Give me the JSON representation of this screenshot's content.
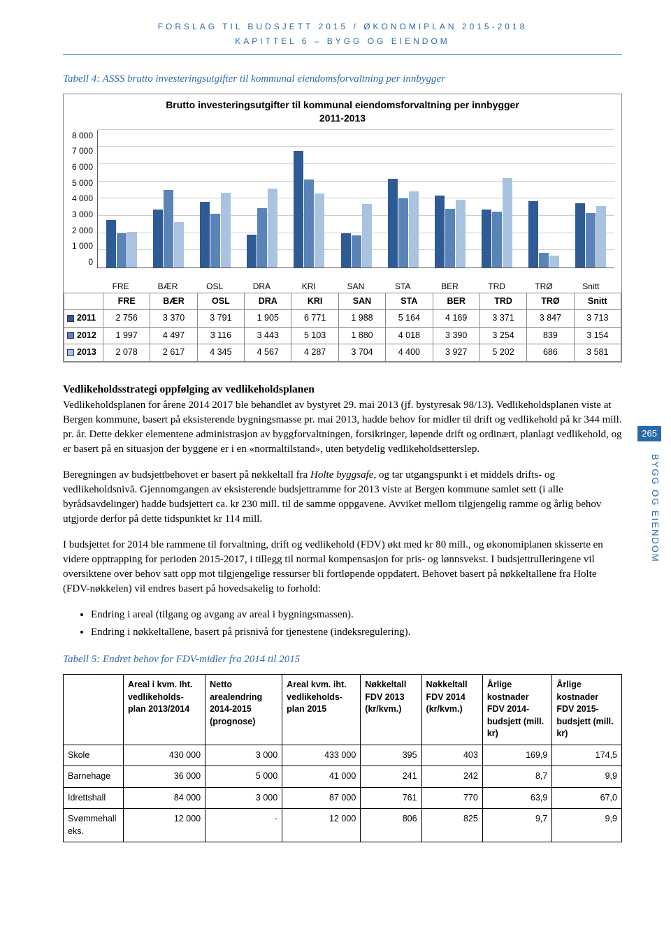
{
  "header": {
    "line1": "FORSLAG TIL BUDSJETT 2015 / ØKONOMIPLAN 2015-2018",
    "line2": "KAPITTEL 6 – BYGG OG EIENDOM"
  },
  "chart": {
    "caption": "Tabell 4: ASSS brutto investeringsutgifter til kommunal eiendomsforvaltning per innbygger",
    "title_l1": "Brutto investeringsutgifter til kommunal eiendomsforvaltning per innbygger",
    "title_l2": "2011-2013",
    "ymax": 8000,
    "ystep": 1000,
    "yticks": [
      "0",
      "1 000",
      "2 000",
      "3 000",
      "4 000",
      "5 000",
      "6 000",
      "7 000",
      "8 000"
    ],
    "categories": [
      "FRE",
      "BÆR",
      "OSL",
      "DRA",
      "KRI",
      "SAN",
      "STA",
      "BER",
      "TRD",
      "TRØ",
      "Snitt"
    ],
    "series": [
      {
        "name": "2011",
        "color": "#2e5b95",
        "values": [
          2756,
          3370,
          3791,
          1905,
          6771,
          1988,
          5164,
          4169,
          3371,
          3847,
          3713
        ]
      },
      {
        "name": "2012",
        "color": "#5a83b8",
        "values": [
          1997,
          4497,
          3116,
          3443,
          5103,
          1880,
          4018,
          3390,
          3254,
          839,
          3154
        ]
      },
      {
        "name": "2013",
        "color": "#a9c3e0",
        "values": [
          2078,
          2617,
          4345,
          4567,
          4287,
          3704,
          4400,
          3927,
          5202,
          686,
          3581
        ]
      }
    ]
  },
  "section_head": "Vedlikeholdsstrategi oppfølging av vedlikeholdsplanen",
  "para1": "Vedlikeholdsplanen for årene 2014 2017 ble behandlet av bystyret 29. mai 2013 (jf. bystyresak 98/13). Vedlikeholdsplanen viste at Bergen kommune, basert på eksisterende bygningsmasse pr. mai 2013, hadde behov for midler til drift og vedlikehold på kr 344 mill. pr. år. Dette dekker elementene administrasjon av byggforvaltningen, forsikringer, løpende drift og ordinært, planlagt vedlikehold, og er basert på en situasjon der byggene er i en «normaltilstand», uten betydelig vedlikeholdsetterslep.",
  "para2_a": "Beregningen av budsjettbehovet er basert på nøkkeltall fra ",
  "para2_it": "Holte byggsafe",
  "para2_b": ", og tar utgangspunkt i et middels drifts- og vedlikeholdsnivå. Gjennomgangen av eksisterende budsjettramme for 2013 viste at Bergen kommune samlet sett (i alle byrådsavdelinger) hadde budsjettert ca. kr 230 mill. til de samme oppgavene. Avviket mellom tilgjengelig ramme og årlig behov utgjorde derfor på dette tidspunktet kr 114 mill.",
  "para3": "I budsjettet for 2014 ble rammene til forvaltning, drift og vedlikehold (FDV) økt med kr 80 mill., og økonomiplanen skisserte en videre opptrapping for perioden 2015-2017, i tillegg til normal kompensasjon for pris- og lønnsvekst. I budsjettrulleringene vil oversiktene over behov satt opp mot tilgjengelige ressurser bli fortløpende oppdatert. Behovet basert på nøkkeltallene fra Holte (FDV-nøkkelen) vil endres basert på hovedsakelig to forhold:",
  "bullets": [
    "Endring i areal (tilgang og avgang av areal i bygningsmassen).",
    "Endring i nøkkeltallene, basert på prisnivå for tjenestene (indeksregulering)."
  ],
  "table5_caption": "Tabell 5: Endret behov for FDV-midler fra 2014 til 2015",
  "fdv": {
    "headers": [
      "",
      "Areal i kvm. Iht. vedlikeholds-plan 2013/2014",
      "Netto arealendring 2014-2015 (prognose)",
      "Areal kvm. iht. vedlikeholds-plan 2015",
      "Nøkkeltall FDV 2013 (kr/kvm.)",
      "Nøkkeltall FDV 2014 (kr/kvm.)",
      "Årlige kostnader FDV 2014-budsjett (mill. kr)",
      "Årlige kostnader FDV 2015-budsjett (mill. kr)"
    ],
    "rows": [
      {
        "label": "Skole",
        "c": [
          "430 000",
          "3 000",
          "433 000",
          "395",
          "403",
          "169,9",
          "174,5"
        ]
      },
      {
        "label": "Barnehage",
        "c": [
          "36 000",
          "5 000",
          "41 000",
          "241",
          "242",
          "8,7",
          "9,9"
        ]
      },
      {
        "label": "Idrettshall",
        "c": [
          "84 000",
          "3 000",
          "87 000",
          "761",
          "770",
          "63,9",
          "67,0"
        ]
      },
      {
        "label": "Svømmehall eks.",
        "c": [
          "12 000",
          "-",
          "12 000",
          "806",
          "825",
          "9,7",
          "9,9"
        ]
      }
    ]
  },
  "pagenum": "265",
  "sidelabel": "BYGG OG EIENDOM"
}
